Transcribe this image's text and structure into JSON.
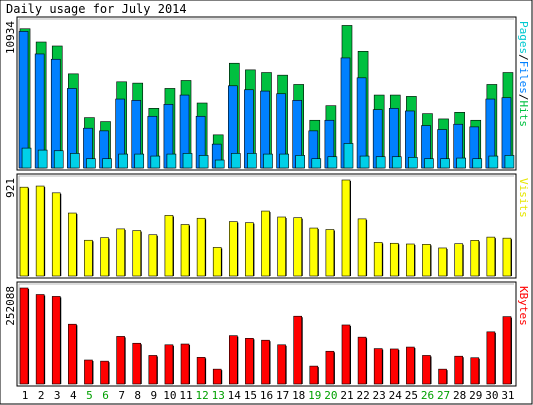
{
  "chart_data": {
    "type": "bar",
    "title": "Daily usage for July 2014",
    "days": [
      "1",
      "2",
      "3",
      "4",
      "5",
      "6",
      "7",
      "8",
      "9",
      "10",
      "11",
      "12",
      "13",
      "14",
      "15",
      "16",
      "17",
      "18",
      "19",
      "20",
      "21",
      "22",
      "23",
      "24",
      "25",
      "26",
      "27",
      "28",
      "29",
      "30",
      "31"
    ],
    "weekend_days": [
      "5",
      "6",
      "12",
      "13",
      "19",
      "20",
      "26",
      "27"
    ],
    "colors": {
      "weekday_label": "#000000",
      "weekend_label": "#00a000",
      "hits": "#00c040",
      "files": "#0080ff",
      "pages": "#00d0e8",
      "visits": "#ffff00",
      "kbytes": "#ff0000"
    },
    "panels": [
      {
        "id": "usage",
        "max_label": "10934",
        "side_legend": [
          {
            "text": "Pages",
            "color": "#00c8d0"
          },
          {
            "text": "/",
            "color": "#000000"
          },
          {
            "text": "Files",
            "color": "#0080ff"
          },
          {
            "text": "/",
            "color": "#000000"
          },
          {
            "text": "Hits",
            "color": "#00c040"
          }
        ],
        "ymax": 10934,
        "series": [
          {
            "name": "Hits",
            "color": "#00c040",
            "values": [
              10500,
              9500,
              9200,
              7100,
              3800,
              3500,
              6500,
              6400,
              4500,
              6000,
              6600,
              4900,
              2500,
              7900,
              7400,
              7200,
              7000,
              6300,
              3600,
              4700,
              10750,
              8800,
              5500,
              5500,
              5400,
              4100,
              3700,
              4200,
              3600,
              6300,
              7200
            ]
          },
          {
            "name": "Files",
            "color": "#0080ff",
            "values": [
              10300,
              8600,
              8200,
              6000,
              3000,
              2800,
              5200,
              5100,
              3900,
              4800,
              5500,
              3900,
              1800,
              6200,
              5900,
              5800,
              5600,
              5100,
              2800,
              3600,
              8300,
              6800,
              4400,
              4500,
              4300,
              3200,
              2900,
              3300,
              3100,
              5200,
              5300
            ]
          },
          {
            "name": "Pages",
            "color": "#00d0e8",
            "values": [
              1500,
              1350,
              1300,
              1100,
              700,
              700,
              1050,
              1050,
              900,
              1050,
              1100,
              950,
              600,
              1100,
              1100,
              1050,
              1050,
              950,
              700,
              850,
              1850,
              900,
              850,
              850,
              800,
              700,
              700,
              750,
              700,
              900,
              950
            ]
          }
        ]
      },
      {
        "id": "visits",
        "max_label": "921",
        "side_legend": [
          {
            "text": "Visits",
            "color": "#e6e600"
          }
        ],
        "ymax": 921,
        "series": [
          {
            "name": "Visits",
            "color": "#ffff00",
            "values": [
              852,
              863,
              798,
              604,
              343,
              368,
              452,
              436,
              396,
              581,
              494,
              554,
              274,
              522,
              512,
              623,
              566,
              560,
              460,
              446,
              921,
              548,
              322,
              314,
              307,
              304,
              269,
              310,
              342,
              373,
              363
            ]
          }
        ]
      },
      {
        "id": "kbytes",
        "max_label": "252088",
        "side_legend": [
          {
            "text": "KBytes",
            "color": "#ff0000"
          }
        ],
        "ymax": 252088,
        "series": [
          {
            "name": "KBytes",
            "color": "#ff0000",
            "values": [
              252088,
              235000,
              230000,
              157000,
              63000,
              60000,
              125000,
              107000,
              75000,
              103000,
              105000,
              70000,
              39000,
              127000,
              120000,
              115000,
              103000,
              178000,
              47000,
              86000,
              155000,
              123000,
              93000,
              92000,
              97000,
              75000,
              39000,
              73000,
              69000,
              137000,
              177000
            ]
          }
        ]
      }
    ]
  }
}
